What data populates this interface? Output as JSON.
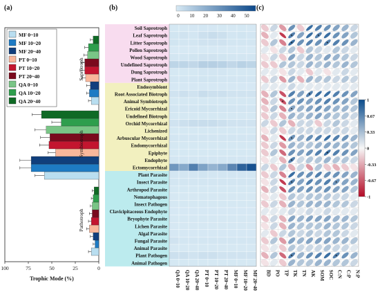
{
  "panels": {
    "a": "(a)",
    "b": "(b)",
    "c": "(c)"
  },
  "chart_data": [
    {
      "type": "bar",
      "orientation": "horizontal",
      "x_reversed": true,
      "xlabel": "Trophic Mode (%)",
      "xlim": [
        0,
        100
      ],
      "xticks": [
        100,
        75,
        50,
        25,
        0
      ],
      "groups": [
        "Saprotroph",
        "Symbiotroph",
        "Pathotroph"
      ],
      "series": [
        {
          "name": "MF 0~10",
          "color": "#b9def0",
          "values": [
            8,
            58,
            8
          ]
        },
        {
          "name": "MF 10~20",
          "color": "#1e7bc4",
          "values": [
            10,
            72,
            4
          ]
        },
        {
          "name": "MF 20~40",
          "color": "#103f7d",
          "values": [
            9,
            72,
            6
          ]
        },
        {
          "name": "PT 0~10",
          "color": "#f9b79b",
          "values": [
            14,
            46,
            10
          ]
        },
        {
          "name": "PT 10~20",
          "color": "#c3152f",
          "values": [
            15,
            53,
            8
          ]
        },
        {
          "name": "PT 20~40",
          "color": "#7a0a1d",
          "values": [
            15,
            52,
            7
          ]
        },
        {
          "name": "QA 0~10",
          "color": "#79c586",
          "values": [
            12,
            56,
            7
          ]
        },
        {
          "name": "QA 10~20",
          "color": "#2e9e4d",
          "values": [
            11,
            40,
            6
          ]
        },
        {
          "name": "QA 20~40",
          "color": "#0f6a25",
          "values": [
            6,
            61,
            5
          ]
        }
      ],
      "errors": [
        [
          3,
          10,
          3
        ],
        [
          3,
          12,
          2
        ],
        [
          4,
          12,
          3
        ],
        [
          4,
          8,
          3
        ],
        [
          5,
          10,
          3
        ],
        [
          4,
          10,
          3
        ],
        [
          4,
          12,
          2
        ],
        [
          4,
          10,
          2
        ],
        [
          3,
          10,
          2
        ]
      ]
    },
    {
      "type": "heatmap",
      "colorbar_ticks": [
        "0",
        "10",
        "20",
        "30",
        "40",
        "50"
      ],
      "colorbar_max": 55,
      "columns": [
        "QA 0~10",
        "QA 10~20",
        "QA 20~40",
        "PT 0~10",
        "PT 10~20",
        "PT 20~40",
        "MF 0~10",
        "MF 10~20",
        "MF 20~40"
      ],
      "rows": [
        {
          "name": "Soil Saprotroph",
          "group": 0,
          "values": [
            0.5,
            0.4,
            0.6,
            0.7,
            0.6,
            0.5,
            0.4,
            0.5,
            0.4
          ]
        },
        {
          "name": "Leaf Saprotroph",
          "group": 0,
          "values": [
            1.5,
            2,
            1,
            3,
            4,
            3,
            1,
            1.5,
            1
          ]
        },
        {
          "name": "Litter Saprotroph",
          "group": 0,
          "values": [
            1.5,
            1,
            1,
            2,
            2,
            2,
            1,
            1,
            1
          ]
        },
        {
          "name": "Pollen Saprotroph",
          "group": 0,
          "values": [
            0.1,
            0.1,
            0.1,
            0.1,
            0.1,
            0.1,
            0.1,
            0.1,
            0.1
          ]
        },
        {
          "name": "Wood Saprotroph",
          "group": 0,
          "values": [
            1,
            1,
            1.5,
            2,
            2,
            1.5,
            1,
            1,
            1
          ]
        },
        {
          "name": "Undefined Saprotroph",
          "group": 0,
          "values": [
            7,
            7,
            6,
            9,
            9,
            8,
            6,
            8,
            7
          ]
        },
        {
          "name": "Dung Saprotroph",
          "group": 0,
          "values": [
            0.5,
            0.5,
            0.5,
            1,
            1,
            1,
            0.5,
            0.5,
            0.5
          ]
        },
        {
          "name": "Plant Saprotroph",
          "group": 0,
          "values": [
            1,
            1,
            1,
            1.5,
            1.5,
            1,
            1,
            1,
            1
          ]
        },
        {
          "name": "Endosymbiont",
          "group": 1,
          "values": [
            0.2,
            0.2,
            0.2,
            0.2,
            0.2,
            0.2,
            0.2,
            0.2,
            0.2
          ]
        },
        {
          "name": "Root Associated Biotroph",
          "group": 1,
          "values": [
            2,
            3,
            2,
            4,
            3,
            3,
            2,
            2,
            2
          ]
        },
        {
          "name": "Animal Symbiotroph",
          "group": 1,
          "values": [
            0.5,
            0.5,
            0.5,
            0.5,
            0.5,
            0.5,
            0.5,
            0.5,
            0.5
          ]
        },
        {
          "name": "Ericoid Mycorrhizal",
          "group": 1,
          "values": [
            1,
            1,
            1,
            1.5,
            1.5,
            1,
            1,
            1,
            1
          ]
        },
        {
          "name": "Undefined Biotroph",
          "group": 1,
          "values": [
            0.5,
            0.5,
            0.5,
            0.5,
            0.5,
            0.5,
            0.5,
            0.5,
            0.5
          ]
        },
        {
          "name": "Orchid Mycorrhizal",
          "group": 1,
          "values": [
            2,
            3,
            4,
            4,
            4,
            3,
            2,
            2,
            2
          ]
        },
        {
          "name": "Lichenized",
          "group": 1,
          "values": [
            0.5,
            0.5,
            0.5,
            0.5,
            0.5,
            0.5,
            0.5,
            0.5,
            0.5
          ]
        },
        {
          "name": "Arbuscular Mycorrhizal",
          "group": 1,
          "values": [
            1,
            1,
            1,
            1,
            1,
            1,
            1,
            1,
            1
          ]
        },
        {
          "name": "Endomycorrhizal",
          "group": 1,
          "values": [
            0.5,
            0.5,
            0.5,
            0.5,
            0.5,
            0.5,
            0.5,
            0.5,
            0.5
          ]
        },
        {
          "name": "Epiphyte",
          "group": 1,
          "values": [
            0.5,
            0.5,
            0.5,
            0.5,
            0.5,
            0.5,
            0.5,
            0.5,
            0.5
          ]
        },
        {
          "name": "Endophyte",
          "group": 1,
          "values": [
            1,
            1,
            1,
            1,
            1,
            1,
            1,
            1,
            1
          ]
        },
        {
          "name": "Ectomycorrhizal",
          "group": 1,
          "values": [
            28,
            22,
            36,
            24,
            18,
            22,
            34,
            46,
            52
          ]
        },
        {
          "name": "Plant Parasite",
          "group": 2,
          "values": [
            1,
            1,
            1,
            1.5,
            1,
            1,
            1,
            1,
            1
          ]
        },
        {
          "name": "Insect Parasite",
          "group": 2,
          "values": [
            1,
            1,
            1,
            1,
            1,
            1,
            1,
            1,
            1
          ]
        },
        {
          "name": "Arthropod Parasite",
          "group": 2,
          "values": [
            0.5,
            0.5,
            0.5,
            0.5,
            0.5,
            0.5,
            0.5,
            0.5,
            0.5
          ]
        },
        {
          "name": "Nematophagous",
          "group": 2,
          "values": [
            0.3,
            0.3,
            0.3,
            0.3,
            0.3,
            0.3,
            0.3,
            0.3,
            0.3
          ]
        },
        {
          "name": "Insect Pathogen",
          "group": 2,
          "values": [
            0.5,
            0.5,
            0.5,
            0.5,
            0.5,
            0.5,
            0.5,
            0.5,
            0.5
          ]
        },
        {
          "name": "Clavicipitaceous Endophyte",
          "group": 2,
          "values": [
            0.2,
            0.2,
            0.2,
            0.2,
            0.2,
            0.2,
            0.2,
            0.2,
            0.2
          ]
        },
        {
          "name": "Bryophyte Parasite",
          "group": 2,
          "values": [
            0.3,
            0.3,
            0.3,
            0.3,
            0.3,
            0.3,
            0.3,
            0.3,
            0.3
          ]
        },
        {
          "name": "Lichen Parasite",
          "group": 2,
          "values": [
            0.3,
            0.3,
            0.3,
            0.3,
            0.3,
            0.3,
            0.3,
            0.3,
            0.3
          ]
        },
        {
          "name": "Algal Parasite",
          "group": 2,
          "values": [
            0.2,
            0.2,
            0.2,
            0.2,
            0.2,
            0.2,
            0.2,
            0.2,
            0.2
          ]
        },
        {
          "name": "Fungal Parasite",
          "group": 2,
          "values": [
            2,
            1,
            1,
            1,
            1,
            1,
            1,
            1,
            1
          ]
        },
        {
          "name": "Animal Parasite",
          "group": 2,
          "values": [
            0.3,
            0.3,
            0.3,
            0.3,
            0.3,
            0.3,
            0.3,
            0.3,
            0.3
          ]
        },
        {
          "name": "Plant Pathogen",
          "group": 2,
          "values": [
            3,
            3,
            2,
            3,
            3,
            2,
            2,
            2,
            2
          ]
        },
        {
          "name": "Animal Pathogen",
          "group": 2,
          "values": [
            0.5,
            0.5,
            0.5,
            0.5,
            0.5,
            0.5,
            0.5,
            0.5,
            0.5
          ]
        }
      ],
      "group_colors": [
        "#f8dcef",
        "#f2f0bf",
        "#bcebee"
      ]
    },
    {
      "type": "correlation",
      "columns": [
        "BD",
        "PO",
        "TP",
        "TK",
        "TN",
        "AK",
        "SOM",
        "SOC",
        "C:N",
        "C:P",
        "N:P"
      ],
      "colorbar_ticks": [
        "1",
        "0.67",
        "0.33",
        "0",
        "-0.33",
        "-0.67",
        "-1"
      ],
      "color_positive": "#0b4c8c",
      "color_negative": "#b30a26",
      "grid": [
        [
          -0.2,
          0.2,
          -0.4,
          0.6,
          -0.2,
          0.8,
          0.7,
          0.6,
          0.5,
          0.4,
          0.2
        ],
        [
          -0.3,
          0.1,
          -0.8,
          0.7,
          0.5,
          0.8,
          0.7,
          0.8,
          0.6,
          0.5,
          0.3
        ],
        [
          -0.2,
          0.3,
          -0.5,
          0.8,
          0.6,
          0.7,
          0.6,
          0.7,
          0.7,
          0.6,
          0.4
        ],
        [
          0.1,
          -0.1,
          0.2,
          0.3,
          -0.2,
          0.3,
          0.2,
          0.1,
          0.3,
          0.2,
          0.1
        ],
        [
          -0.1,
          0.2,
          -0.2,
          0.5,
          0.2,
          0.4,
          0.3,
          0.5,
          0.4,
          0.3,
          0.2
        ],
        [
          -0.2,
          -0.2,
          0.3,
          0.3,
          0.2,
          0.4,
          0.3,
          0.4,
          0.3,
          0.4,
          0.3
        ],
        [
          0.1,
          0.1,
          -0.1,
          0.2,
          0.1,
          -0.2,
          0.1,
          -0.1,
          0.1,
          0.2,
          0.1
        ],
        [
          -0.2,
          0.2,
          -0.4,
          0.4,
          -0.3,
          0.4,
          0.3,
          0.3,
          0.2,
          0.3,
          0.2
        ],
        [
          0.1,
          0.1,
          0.1,
          0.2,
          0.1,
          0.1,
          0.1,
          0.1,
          0.1,
          0.1,
          0.1
        ],
        [
          -0.3,
          0.3,
          -0.7,
          0.7,
          0.5,
          0.7,
          0.8,
          0.8,
          0.7,
          0.6,
          0.5
        ],
        [
          -0.3,
          0.2,
          -0.7,
          0.6,
          0.6,
          0.5,
          0.6,
          0.7,
          0.6,
          0.5,
          0.3
        ],
        [
          -0.2,
          0.3,
          -0.5,
          0.5,
          0.4,
          0.5,
          0.6,
          0.5,
          0.4,
          0.4,
          0.3
        ],
        [
          -0.2,
          0.2,
          -0.3,
          0.4,
          0.3,
          0.4,
          0.5,
          0.4,
          0.3,
          0.3,
          0.2
        ],
        [
          0.2,
          -0.2,
          0.3,
          -0.3,
          0.2,
          0.2,
          -0.2,
          0.2,
          0.3,
          0.2,
          0.1
        ],
        [
          -0.1,
          0.2,
          -0.2,
          0.2,
          0.2,
          0.2,
          0.2,
          0.2,
          0.2,
          0.2,
          0.1
        ],
        [
          -0.3,
          0.1,
          -0.8,
          0.6,
          0.4,
          0.6,
          0.7,
          0.8,
          0.7,
          0.6,
          0.4
        ],
        [
          -0.2,
          0.2,
          -0.4,
          0.4,
          0.3,
          0.3,
          0.4,
          0.5,
          0.4,
          0.4,
          0.3
        ],
        [
          -0.2,
          0.3,
          -0.6,
          0.6,
          0.5,
          0.6,
          0.7,
          0.8,
          0.7,
          0.6,
          0.5
        ],
        [
          -0.1,
          0.1,
          -0.3,
          0.7,
          0.2,
          0.3,
          0.3,
          0.4,
          0.3,
          0.3,
          0.2
        ],
        [
          0.2,
          -0.2,
          0.3,
          -0.3,
          0.2,
          -0.4,
          0.3,
          -0.2,
          -0.3,
          -0.2,
          -0.1
        ],
        [
          -0.2,
          0.2,
          -0.5,
          0.8,
          0.6,
          0.6,
          0.7,
          0.6,
          0.6,
          0.5,
          0.4
        ],
        [
          -0.1,
          0.2,
          -0.8,
          0.7,
          0.5,
          0.7,
          0.6,
          0.7,
          0.6,
          0.5,
          0.4
        ],
        [
          -0.3,
          0.2,
          -0.7,
          0.6,
          0.5,
          0.6,
          0.5,
          0.6,
          0.5,
          0.5,
          0.3
        ],
        [
          -0.1,
          0.1,
          -0.2,
          0.3,
          0.2,
          0.3,
          0.3,
          0.3,
          0.2,
          0.2,
          0.1
        ],
        [
          -0.2,
          0.2,
          -0.3,
          0.4,
          0.3,
          0.4,
          0.4,
          0.4,
          0.3,
          0.3,
          0.2
        ],
        [
          0.1,
          0.1,
          0.1,
          0.2,
          0.1,
          0.2,
          0.1,
          0.2,
          0.1,
          0.1,
          0.1
        ],
        [
          -0.2,
          0.2,
          -0.3,
          0.5,
          0.4,
          0.5,
          0.5,
          0.5,
          0.4,
          0.4,
          0.3
        ],
        [
          -0.1,
          0.2,
          -0.3,
          0.4,
          0.3,
          0.3,
          0.3,
          0.4,
          0.3,
          0.3,
          0.2
        ],
        [
          0.1,
          -0.2,
          0.2,
          0.3,
          0.2,
          0.3,
          0.2,
          0.3,
          0.3,
          0.2,
          0.1
        ],
        [
          -0.2,
          0.3,
          -0.4,
          0.5,
          0.4,
          0.5,
          0.5,
          0.5,
          0.4,
          0.4,
          0.3
        ],
        [
          -0.1,
          0.1,
          -0.2,
          0.3,
          0.2,
          0.2,
          0.2,
          0.3,
          0.2,
          0.2,
          0.1
        ],
        [
          -0.3,
          0.3,
          -0.6,
          0.7,
          0.4,
          0.6,
          0.7,
          0.8,
          0.7,
          0.6,
          0.4
        ],
        [
          -0.1,
          0.1,
          -0.2,
          0.4,
          0.3,
          0.3,
          0.4,
          0.4,
          0.3,
          0.3,
          0.2
        ]
      ],
      "significant": [
        [
          1,
          3
        ],
        [
          1,
          6
        ],
        [
          2,
          3
        ],
        [
          2,
          7
        ],
        [
          11,
          3
        ],
        [
          15,
          3
        ],
        [
          17,
          7
        ],
        [
          18,
          3
        ],
        [
          21,
          3
        ],
        [
          21,
          8
        ],
        [
          31,
          3
        ],
        [
          31,
          8
        ],
        [
          9,
          5
        ],
        [
          10,
          2
        ]
      ]
    }
  ]
}
